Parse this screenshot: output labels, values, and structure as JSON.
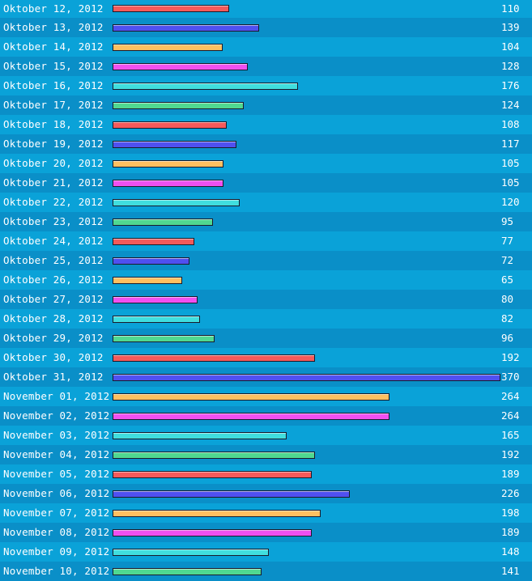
{
  "chart_data": {
    "type": "bar",
    "orientation": "horizontal",
    "colors": [
      "#f45a5a",
      "#5050f0",
      "#ffc060",
      "#f050f0",
      "#40dede",
      "#50d890"
    ],
    "categories": [
      "Oktober 12, 2012",
      "Oktober 13, 2012",
      "Oktober 14, 2012",
      "Oktober 15, 2012",
      "Oktober 16, 2012",
      "Oktober 17, 2012",
      "Oktober 18, 2012",
      "Oktober 19, 2012",
      "Oktober 20, 2012",
      "Oktober 21, 2012",
      "Oktober 22, 2012",
      "Oktober 23, 2012",
      "Oktober 24, 2012",
      "Oktober 25, 2012",
      "Oktober 26, 2012",
      "Oktober 27, 2012",
      "Oktober 28, 2012",
      "Oktober 29, 2012",
      "Oktober 30, 2012",
      "Oktober 31, 2012",
      "November 01, 2012",
      "November 02, 2012",
      "November 03, 2012",
      "November 04, 2012",
      "November 05, 2012",
      "November 06, 2012",
      "November 07, 2012",
      "November 08, 2012",
      "November 09, 2012",
      "November 10, 2012"
    ],
    "values": [
      110,
      139,
      104,
      128,
      176,
      124,
      108,
      117,
      105,
      105,
      120,
      95,
      77,
      72,
      65,
      80,
      82,
      96,
      192,
      370,
      264,
      264,
      165,
      192,
      189,
      226,
      198,
      189,
      148,
      141
    ],
    "xlim": [
      0,
      370
    ],
    "grid": false,
    "legend": "none"
  }
}
